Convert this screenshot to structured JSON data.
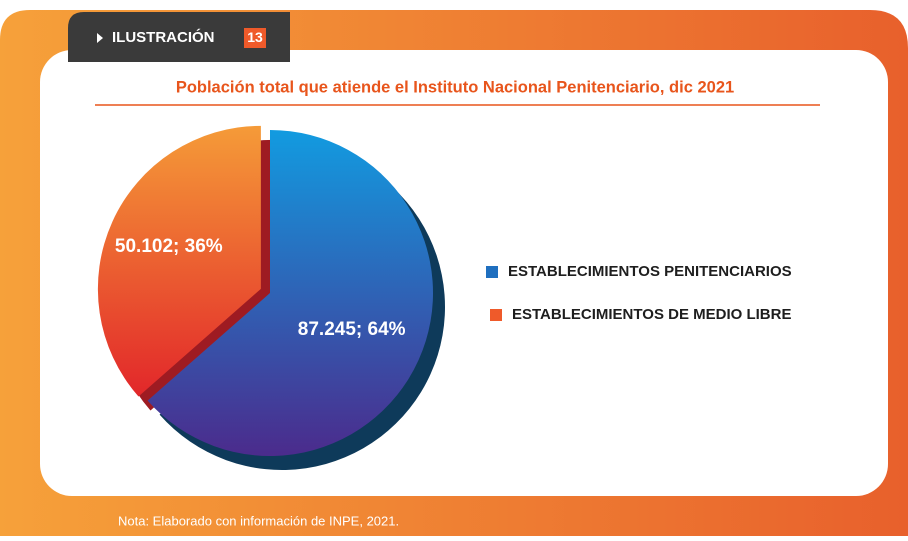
{
  "badge": {
    "text": "ILUSTRACIÓN",
    "number": "13"
  },
  "chart_data": {
    "type": "pie",
    "title": "Población total que atiende el Instituto Nacional Penitenciario, dic 2021",
    "categories": [
      "ESTABLECIMIENTOS PENITENCIARIOS",
      "ESTABLECIMIENTOS DE MEDIO LIBRE"
    ],
    "values": [
      87245,
      50102
    ],
    "value_labels": [
      "87.245; 64%",
      "50.102; 36%"
    ],
    "colors": [
      "#1f6fbf",
      "#ef5a2a"
    ],
    "legend": "right"
  },
  "note": "Nota: Elaborado con información de INPE, 2021."
}
